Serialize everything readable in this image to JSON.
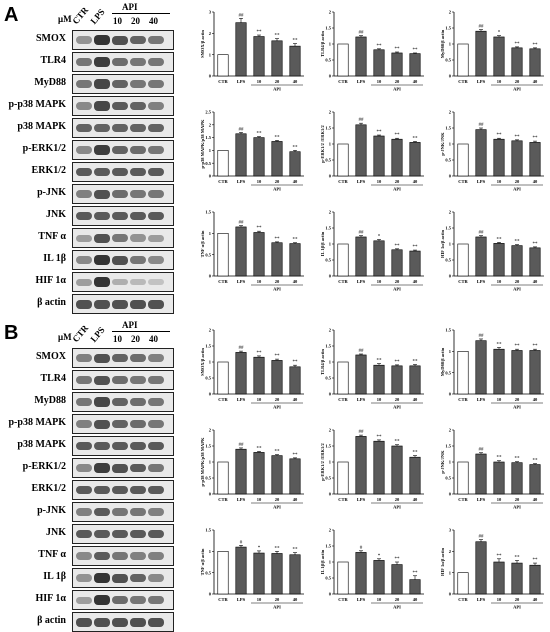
{
  "panels": [
    {
      "letter": "A",
      "header": {
        "unit": "μM",
        "lanes": [
          "CTR",
          "LPS",
          "10",
          "20",
          "40"
        ],
        "group": "API"
      },
      "blots": [
        {
          "label": "SMOX",
          "intensity": [
            0.45,
            0.95,
            0.8,
            0.7,
            0.6
          ]
        },
        {
          "label": "TLR4",
          "intensity": [
            0.6,
            0.9,
            0.65,
            0.6,
            0.6
          ]
        },
        {
          "label": "MyD88",
          "intensity": [
            0.6,
            0.85,
            0.7,
            0.6,
            0.6
          ]
        },
        {
          "label": "p-p38 MAPK",
          "intensity": [
            0.5,
            0.85,
            0.75,
            0.7,
            0.55
          ]
        },
        {
          "label": "p38 MAPK",
          "intensity": [
            0.7,
            0.7,
            0.7,
            0.7,
            0.7
          ]
        },
        {
          "label": "p-ERK1/2",
          "intensity": [
            0.5,
            0.9,
            0.7,
            0.65,
            0.6
          ]
        },
        {
          "label": "ERK1/2",
          "intensity": [
            0.75,
            0.75,
            0.75,
            0.75,
            0.75
          ]
        },
        {
          "label": "p-JNK",
          "intensity": [
            0.55,
            0.8,
            0.65,
            0.6,
            0.6
          ]
        },
        {
          "label": "JNK",
          "intensity": [
            0.75,
            0.75,
            0.75,
            0.75,
            0.75
          ]
        },
        {
          "label": "TNF α",
          "intensity": [
            0.4,
            0.8,
            0.6,
            0.45,
            0.4
          ]
        },
        {
          "label": "IL 1β",
          "intensity": [
            0.5,
            0.95,
            0.8,
            0.6,
            0.5
          ]
        },
        {
          "label": "HIF 1α",
          "intensity": [
            0.4,
            0.95,
            0.3,
            0.25,
            0.2
          ]
        },
        {
          "label": "β actin",
          "intensity": [
            0.8,
            0.8,
            0.8,
            0.8,
            0.8
          ]
        }
      ]
    },
    {
      "letter": "B",
      "header": {
        "unit": "μM",
        "lanes": [
          "CTR",
          "LPS",
          "10",
          "20",
          "40"
        ],
        "group": "API"
      },
      "blots": [
        {
          "label": "SMOX",
          "intensity": [
            0.55,
            0.8,
            0.7,
            0.65,
            0.55
          ]
        },
        {
          "label": "TLR4",
          "intensity": [
            0.6,
            0.8,
            0.65,
            0.6,
            0.6
          ]
        },
        {
          "label": "MyD88",
          "intensity": [
            0.6,
            0.85,
            0.7,
            0.65,
            0.6
          ]
        },
        {
          "label": "p-p38 MAPK",
          "intensity": [
            0.55,
            0.8,
            0.7,
            0.65,
            0.6
          ]
        },
        {
          "label": "p38 MAPK",
          "intensity": [
            0.75,
            0.75,
            0.75,
            0.75,
            0.75
          ]
        },
        {
          "label": "p-ERK1/2",
          "intensity": [
            0.5,
            0.9,
            0.8,
            0.75,
            0.6
          ]
        },
        {
          "label": "ERK1/2",
          "intensity": [
            0.75,
            0.75,
            0.75,
            0.75,
            0.75
          ]
        },
        {
          "label": "p-JNK",
          "intensity": [
            0.55,
            0.75,
            0.6,
            0.6,
            0.55
          ]
        },
        {
          "label": "JNK",
          "intensity": [
            0.75,
            0.75,
            0.75,
            0.75,
            0.75
          ]
        },
        {
          "label": "TNF α",
          "intensity": [
            0.5,
            0.75,
            0.6,
            0.55,
            0.55
          ]
        },
        {
          "label": "IL 1β",
          "intensity": [
            0.45,
            0.95,
            0.8,
            0.7,
            0.5
          ]
        },
        {
          "label": "HIF 1α",
          "intensity": [
            0.4,
            0.95,
            0.65,
            0.6,
            0.6
          ]
        },
        {
          "label": "β actin",
          "intensity": [
            0.8,
            0.8,
            0.8,
            0.8,
            0.8
          ]
        }
      ]
    }
  ],
  "chart_data": [
    {
      "panel": "A",
      "type": "bar",
      "ylabel": "SMOX/β actin",
      "ylim": [
        0,
        3
      ],
      "yticks": [
        0,
        1,
        2,
        3
      ],
      "categories": [
        "CTR",
        "LPS",
        "10",
        "20",
        "40"
      ],
      "group_label": "API",
      "values": [
        1.0,
        2.5,
        1.85,
        1.65,
        1.4
      ],
      "errors": [
        0,
        0.2,
        0.07,
        0.1,
        0.12
      ],
      "significance": [
        "",
        "##",
        "**",
        "**",
        "**"
      ]
    },
    {
      "panel": "A",
      "type": "bar",
      "ylabel": "TLR4/β actin",
      "ylim": [
        0,
        2.0
      ],
      "yticks": [
        0,
        0.5,
        1.0,
        1.5,
        2.0
      ],
      "categories": [
        "CTR",
        "LPS",
        "10",
        "20",
        "40"
      ],
      "group_label": "API",
      "values": [
        1.0,
        1.22,
        0.82,
        0.72,
        0.7
      ],
      "errors": [
        0,
        0.04,
        0.03,
        0.03,
        0.02
      ],
      "significance": [
        "",
        "##",
        "**",
        "**",
        "**"
      ]
    },
    {
      "panel": "A",
      "type": "bar",
      "ylabel": "MyD88/β actin",
      "ylim": [
        0,
        2.0
      ],
      "yticks": [
        0,
        0.5,
        1.0,
        1.5,
        2.0
      ],
      "categories": [
        "CTR",
        "LPS",
        "10",
        "20",
        "40"
      ],
      "group_label": "API",
      "values": [
        1.0,
        1.4,
        1.22,
        0.88,
        0.85
      ],
      "errors": [
        0,
        0.05,
        0.04,
        0.03,
        0.03
      ],
      "significance": [
        "",
        "##",
        "*",
        "**",
        "**"
      ]
    },
    {
      "panel": "A",
      "type": "bar",
      "ylabel": "p-p38 MAPK/p38 MAPK",
      "ylim": [
        0,
        2.5
      ],
      "yticks": [
        0,
        0.5,
        1.0,
        1.5,
        2.0,
        2.5
      ],
      "categories": [
        "CTR",
        "LPS",
        "10",
        "20",
        "40"
      ],
      "group_label": "API",
      "values": [
        1.0,
        1.65,
        1.5,
        1.35,
        0.95
      ],
      "errors": [
        0,
        0.05,
        0.04,
        0.04,
        0.05
      ],
      "significance": [
        "",
        "##",
        "**",
        "**",
        "**"
      ]
    },
    {
      "panel": "A",
      "type": "bar",
      "ylabel": "p-ERK1/2 /ERK1/2",
      "ylim": [
        0,
        2.0
      ],
      "yticks": [
        0,
        0.5,
        1.0,
        1.5,
        2.0
      ],
      "categories": [
        "CTR",
        "LPS",
        "10",
        "20",
        "40"
      ],
      "group_label": "API",
      "values": [
        1.0,
        1.6,
        1.25,
        1.15,
        1.05
      ],
      "errors": [
        0,
        0.05,
        0.03,
        0.03,
        0.03
      ],
      "significance": [
        "",
        "##",
        "**",
        "**",
        "**"
      ]
    },
    {
      "panel": "A",
      "type": "bar",
      "ylabel": "p-JNK/JNK",
      "ylim": [
        0,
        2.0
      ],
      "yticks": [
        0,
        0.5,
        1.0,
        1.5,
        2.0
      ],
      "categories": [
        "CTR",
        "LPS",
        "10",
        "20",
        "40"
      ],
      "group_label": "API",
      "values": [
        1.0,
        1.45,
        1.15,
        1.1,
        1.05
      ],
      "errors": [
        0,
        0.05,
        0.03,
        0.03,
        0.04
      ],
      "significance": [
        "",
        "##",
        "**",
        "**",
        "**"
      ]
    },
    {
      "panel": "A",
      "type": "bar",
      "ylabel": "TNF α/β actin",
      "ylim": [
        0,
        1.5
      ],
      "yticks": [
        0,
        0.5,
        1.0,
        1.5
      ],
      "categories": [
        "CTR",
        "LPS",
        "10",
        "20",
        "40"
      ],
      "group_label": "API",
      "values": [
        1.0,
        1.15,
        1.02,
        0.78,
        0.76
      ],
      "errors": [
        0,
        0.03,
        0.03,
        0.02,
        0.02
      ],
      "significance": [
        "",
        "##",
        "**",
        "**",
        "**"
      ]
    },
    {
      "panel": "A",
      "type": "bar",
      "ylabel": "IL 1β/β actin",
      "ylim": [
        0,
        2.0
      ],
      "yticks": [
        0,
        0.5,
        1.0,
        1.5,
        2.0
      ],
      "categories": [
        "CTR",
        "LPS",
        "10",
        "20",
        "40"
      ],
      "group_label": "API",
      "values": [
        1.0,
        1.22,
        1.1,
        0.82,
        0.78
      ],
      "errors": [
        0,
        0.04,
        0.04,
        0.03,
        0.03
      ],
      "significance": [
        "",
        "##",
        "*",
        "**",
        "**"
      ]
    },
    {
      "panel": "A",
      "type": "bar",
      "ylabel": "HIF 1α/β actin",
      "ylim": [
        0,
        2.0
      ],
      "yticks": [
        0,
        0.5,
        1.0,
        1.5,
        2.0
      ],
      "categories": [
        "CTR",
        "LPS",
        "10",
        "20",
        "40"
      ],
      "group_label": "API",
      "values": [
        1.0,
        1.22,
        1.02,
        0.95,
        0.88
      ],
      "errors": [
        0,
        0.04,
        0.03,
        0.03,
        0.03
      ],
      "significance": [
        "",
        "##",
        "**",
        "**",
        "**"
      ]
    },
    {
      "panel": "B",
      "type": "bar",
      "ylabel": "SMOX/β actin",
      "ylim": [
        0,
        2.0
      ],
      "yticks": [
        0,
        0.5,
        1.0,
        1.5,
        2.0
      ],
      "categories": [
        "CTR",
        "LPS",
        "10",
        "20",
        "40"
      ],
      "group_label": "API",
      "values": [
        1.0,
        1.3,
        1.15,
        1.05,
        0.85
      ],
      "errors": [
        0,
        0.04,
        0.04,
        0.04,
        0.05
      ],
      "significance": [
        "",
        "##",
        "**",
        "**",
        "**"
      ]
    },
    {
      "panel": "B",
      "type": "bar",
      "ylabel": "TLR4/β actin",
      "ylim": [
        0,
        2.0
      ],
      "yticks": [
        0,
        0.5,
        1.0,
        1.5,
        2.0
      ],
      "categories": [
        "CTR",
        "LPS",
        "10",
        "20",
        "40"
      ],
      "group_label": "API",
      "values": [
        1.0,
        1.22,
        0.9,
        0.88,
        0.88
      ],
      "errors": [
        0,
        0.03,
        0.05,
        0.03,
        0.04
      ],
      "significance": [
        "",
        "##",
        "**",
        "**",
        "**"
      ]
    },
    {
      "panel": "B",
      "type": "bar",
      "ylabel": "MyD88/β actin",
      "ylim": [
        0,
        1.5
      ],
      "yticks": [
        0,
        0.5,
        1.0,
        1.5
      ],
      "categories": [
        "CTR",
        "LPS",
        "10",
        "20",
        "40"
      ],
      "group_label": "API",
      "values": [
        1.0,
        1.25,
        1.05,
        1.02,
        1.02
      ],
      "errors": [
        0,
        0.04,
        0.04,
        0.03,
        0.03
      ],
      "significance": [
        "",
        "##",
        "**",
        "**",
        "**"
      ]
    },
    {
      "panel": "B",
      "type": "bar",
      "ylabel": "p-p38 MAPK/p38 MAPK",
      "ylim": [
        0,
        2.0
      ],
      "yticks": [
        0,
        0.5,
        1.0,
        1.5,
        2.0
      ],
      "categories": [
        "CTR",
        "LPS",
        "10",
        "20",
        "40"
      ],
      "group_label": "API",
      "values": [
        1.0,
        1.4,
        1.3,
        1.2,
        1.1
      ],
      "errors": [
        0,
        0.04,
        0.03,
        0.03,
        0.03
      ],
      "significance": [
        "",
        "##",
        "**",
        "**",
        "**"
      ]
    },
    {
      "panel": "B",
      "type": "bar",
      "ylabel": "p-ERK1/2 /ERK1/2",
      "ylim": [
        0,
        2.0
      ],
      "yticks": [
        0,
        0.5,
        1.0,
        1.5,
        2.0
      ],
      "categories": [
        "CTR",
        "LPS",
        "10",
        "20",
        "40"
      ],
      "group_label": "API",
      "values": [
        1.0,
        1.8,
        1.65,
        1.5,
        1.15
      ],
      "errors": [
        0,
        0.04,
        0.04,
        0.04,
        0.05
      ],
      "significance": [
        "",
        "##",
        "**",
        "**",
        "**"
      ]
    },
    {
      "panel": "B",
      "type": "bar",
      "ylabel": "p-JNK/JNK",
      "ylim": [
        0,
        2.0
      ],
      "yticks": [
        0,
        0.5,
        1.0,
        1.5,
        2.0
      ],
      "categories": [
        "CTR",
        "LPS",
        "10",
        "20",
        "40"
      ],
      "group_label": "API",
      "values": [
        1.0,
        1.25,
        1.0,
        0.98,
        0.92
      ],
      "errors": [
        0,
        0.04,
        0.04,
        0.03,
        0.03
      ],
      "significance": [
        "",
        "##",
        "**",
        "**",
        "**"
      ]
    },
    {
      "panel": "B",
      "type": "bar",
      "ylabel": "TNF α/β actin",
      "ylim": [
        0,
        1.5
      ],
      "yticks": [
        0,
        0.5,
        1.0,
        1.5
      ],
      "categories": [
        "CTR",
        "LPS",
        "10",
        "20",
        "40"
      ],
      "group_label": "API",
      "values": [
        1.0,
        1.1,
        0.96,
        0.95,
        0.92
      ],
      "errors": [
        0,
        0.04,
        0.05,
        0.05,
        0.05
      ],
      "significance": [
        "",
        "#",
        "*",
        "**",
        "**"
      ]
    },
    {
      "panel": "B",
      "type": "bar",
      "ylabel": "IL 1β/β actin",
      "ylim": [
        0,
        2.0
      ],
      "yticks": [
        0,
        0.5,
        1.0,
        1.5,
        2.0
      ],
      "categories": [
        "CTR",
        "LPS",
        "10",
        "20",
        "40"
      ],
      "group_label": "API",
      "values": [
        1.0,
        1.3,
        1.05,
        0.92,
        0.45
      ],
      "errors": [
        0,
        0.05,
        0.05,
        0.08,
        0.12
      ],
      "significance": [
        "",
        "#",
        "*",
        "**",
        "**"
      ]
    },
    {
      "panel": "B",
      "type": "bar",
      "ylabel": "HIF 1α/β actin",
      "ylim": [
        0,
        3
      ],
      "yticks": [
        0,
        1,
        2,
        3
      ],
      "categories": [
        "CTR",
        "LPS",
        "10",
        "20",
        "40"
      ],
      "group_label": "API",
      "values": [
        1.0,
        2.45,
        1.5,
        1.45,
        1.35
      ],
      "errors": [
        0,
        0.1,
        0.15,
        0.12,
        0.1
      ],
      "significance": [
        "",
        "##",
        "**",
        "**",
        "**"
      ]
    }
  ]
}
